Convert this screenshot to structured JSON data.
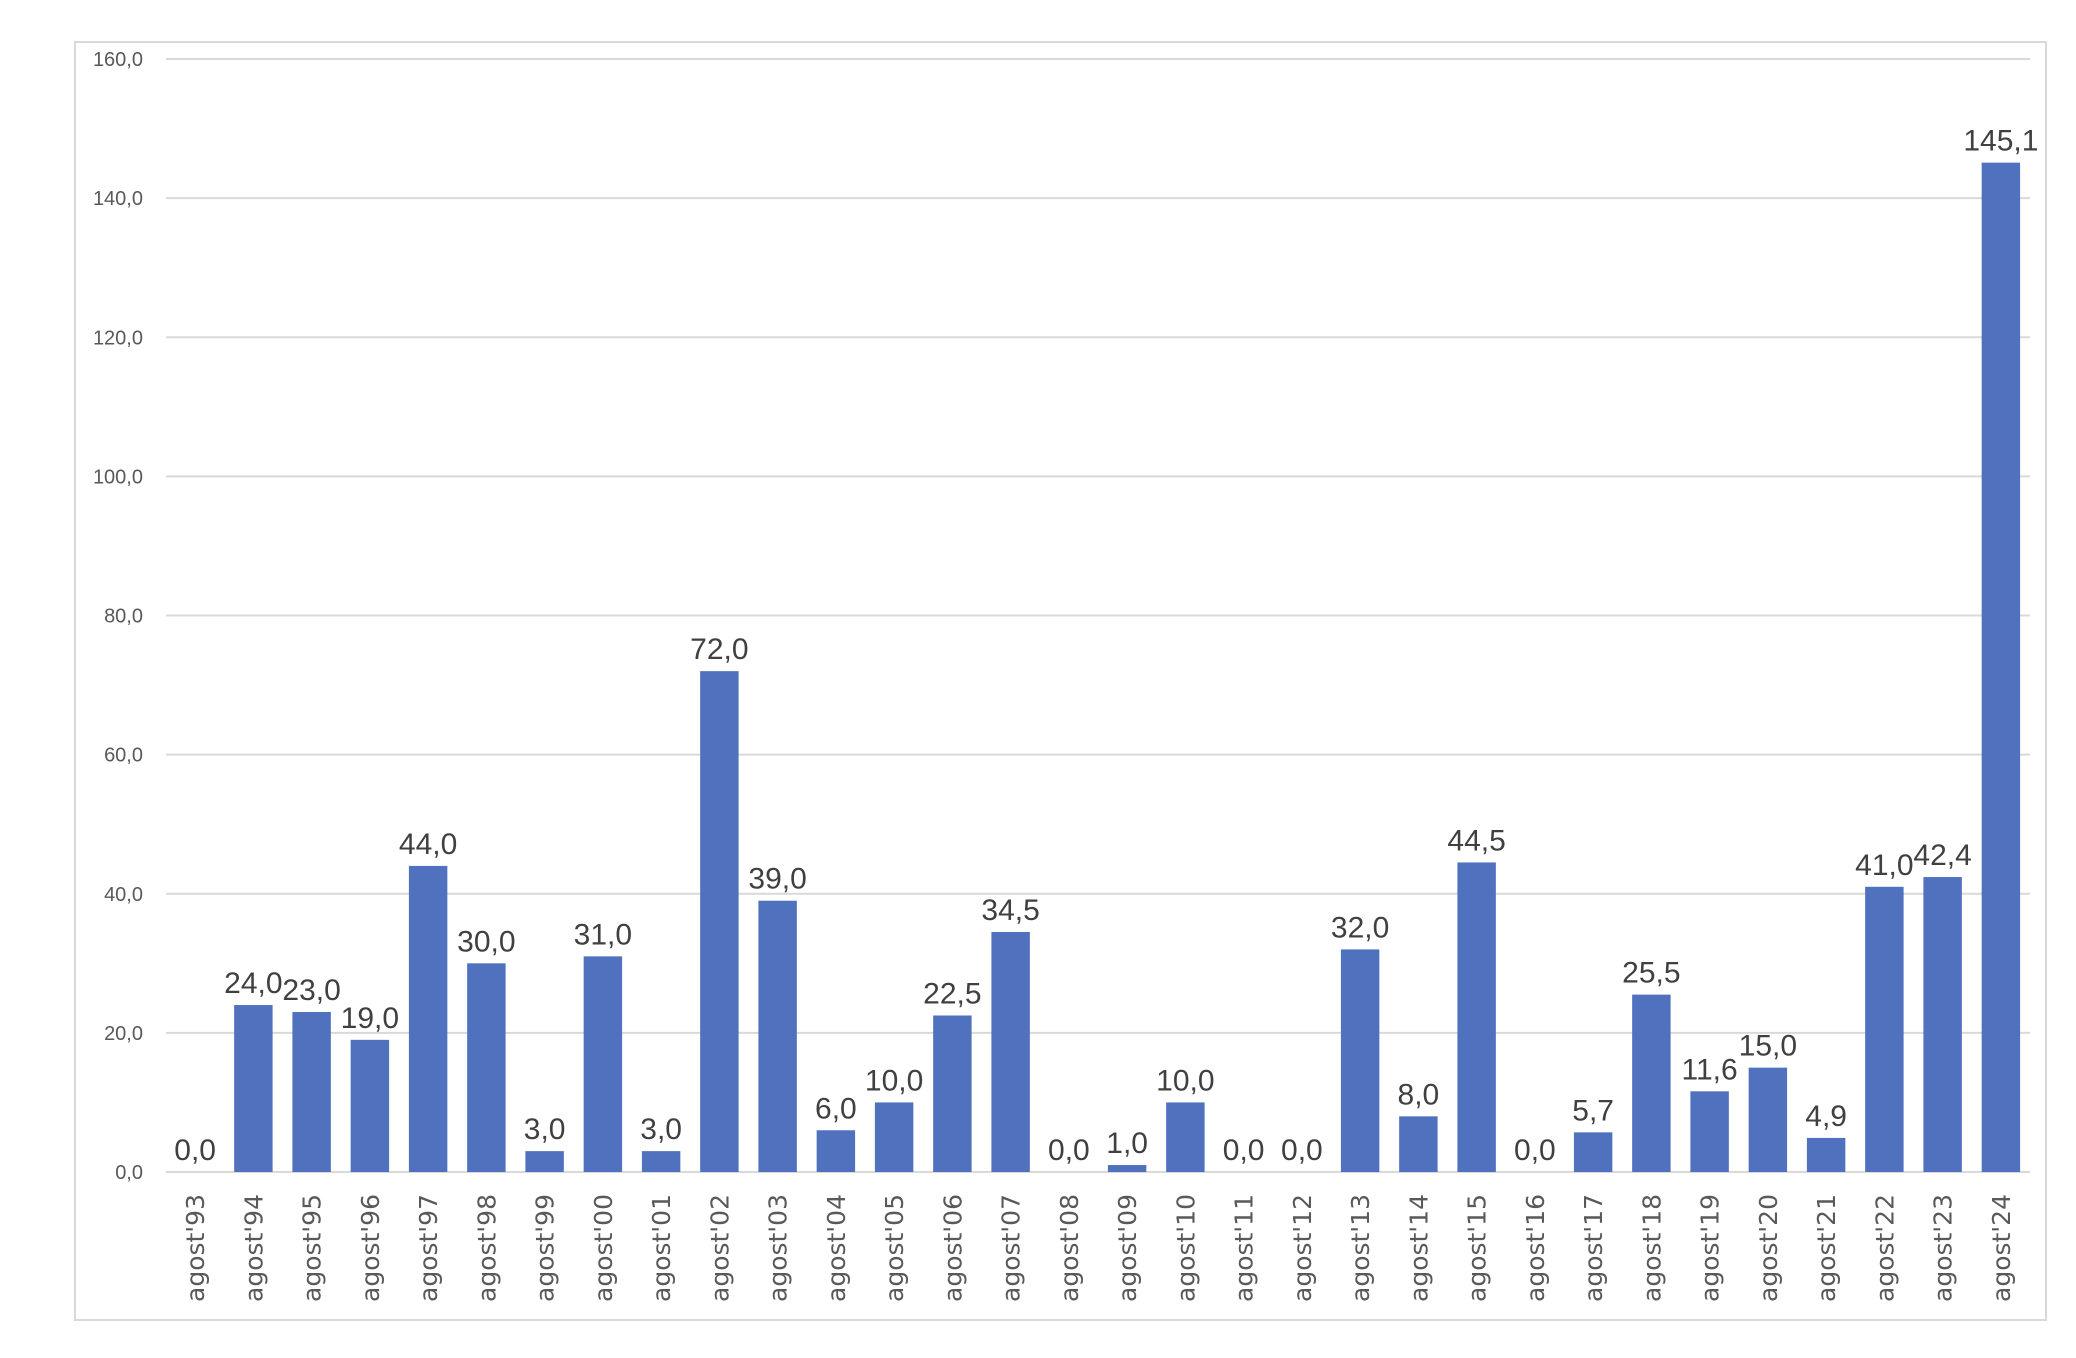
{
  "chart_data": {
    "type": "bar",
    "title": "",
    "xlabel": "",
    "ylabel": "",
    "ylim": [
      0,
      160
    ],
    "yticks": [
      "0,0",
      "20,0",
      "40,0",
      "60,0",
      "80,0",
      "100,0",
      "120,0",
      "140,0",
      "160,0"
    ],
    "grid": true,
    "legend": "none",
    "bar_color": "#4F71BE",
    "categories": [
      "agost'93",
      "agost'94",
      "agost'95",
      "agost'96",
      "agost'97",
      "agost'98",
      "agost'99",
      "agost'00",
      "agost'01",
      "agost'02",
      "agost'03",
      "agost'04",
      "agost'05",
      "agost'06",
      "agost'07",
      "agost'08",
      "agost'09",
      "agost'10",
      "agost'11",
      "agost'12",
      "agost'13",
      "agost'14",
      "agost'15",
      "agost'16",
      "agost'17",
      "agost'18",
      "agost'19",
      "agost'20",
      "agost'21",
      "agost'22",
      "agost'23",
      "agost'24"
    ],
    "values": [
      0,
      24,
      23,
      19,
      44,
      30,
      3,
      31,
      3,
      72,
      39,
      6,
      10,
      22.5,
      34.5,
      0,
      1,
      10,
      0,
      0,
      32,
      8,
      44.5,
      0,
      5.7,
      25.5,
      11.6,
      15,
      4.9,
      41,
      42.4,
      145.1
    ],
    "data_labels": [
      "0,0",
      "24,0",
      "23,0",
      "19,0",
      "44,0",
      "30,0",
      "3,0",
      "31,0",
      "3,0",
      "72,0",
      "39,0",
      "6,0",
      "10,0",
      "22,5",
      "34,5",
      "0,0",
      "1,0",
      "10,0",
      "0,0",
      "0,0",
      "32,0",
      "8,0",
      "44,5",
      "0,0",
      "5,7",
      "25,5",
      "11,6",
      "15,0",
      "4,9",
      "41,0",
      "42,4",
      "145,1"
    ]
  }
}
